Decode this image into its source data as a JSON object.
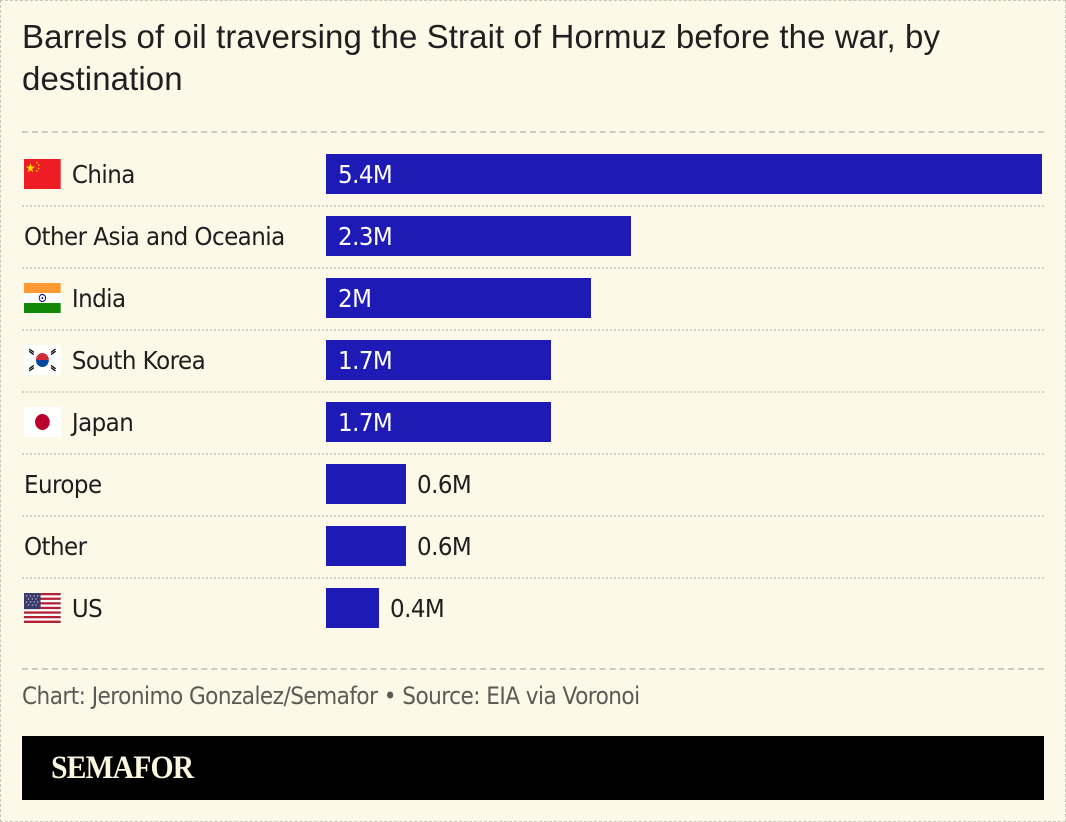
{
  "title": "Barrels of oil traversing the Strait of Hormuz before the war, by destination",
  "colors": {
    "background": "#fcf9e8",
    "bar": "#1d1ab6",
    "footer": "#000000",
    "brand_text": "#fbf6de"
  },
  "rows": [
    {
      "label": "China",
      "value_label": "5.4M",
      "flag": "china-flag-icon"
    },
    {
      "label": "Other Asia and Oceania",
      "value_label": "2.3M",
      "flag": null
    },
    {
      "label": "India",
      "value_label": "2M",
      "flag": "india-flag-icon"
    },
    {
      "label": "South Korea",
      "value_label": "1.7M",
      "flag": "south-korea-flag-icon"
    },
    {
      "label": "Japan",
      "value_label": "1.7M",
      "flag": "japan-flag-icon"
    },
    {
      "label": "Europe",
      "value_label": "0.6M",
      "flag": null
    },
    {
      "label": "Other",
      "value_label": "0.6M",
      "flag": null
    },
    {
      "label": "US",
      "value_label": "0.4M",
      "flag": "us-flag-icon"
    }
  ],
  "source": "Chart: Jeronimo Gonzalez/Semafor • Source: EIA via Voronoi",
  "footer": {
    "brand": "SEMAFOR"
  },
  "chart_data": {
    "type": "bar",
    "orientation": "horizontal",
    "title": "Barrels of oil traversing the Strait of Hormuz before the war, by destination",
    "categories": [
      "China",
      "Other Asia and Oceania",
      "India",
      "South Korea",
      "Japan",
      "Europe",
      "Other",
      "US"
    ],
    "values": [
      5.4,
      2.3,
      2.0,
      1.7,
      1.7,
      0.6,
      0.6,
      0.4
    ],
    "value_labels": [
      "5.4M",
      "2.3M",
      "2M",
      "1.7M",
      "1.7M",
      "0.6M",
      "0.6M",
      "0.4M"
    ],
    "units": "million barrels",
    "xlabel": "",
    "ylabel": "",
    "xlim": [
      0,
      5.4
    ],
    "grid": false,
    "legend": null,
    "source": "Chart: Jeronimo Gonzalez/Semafor • Source: EIA via Voronoi"
  }
}
